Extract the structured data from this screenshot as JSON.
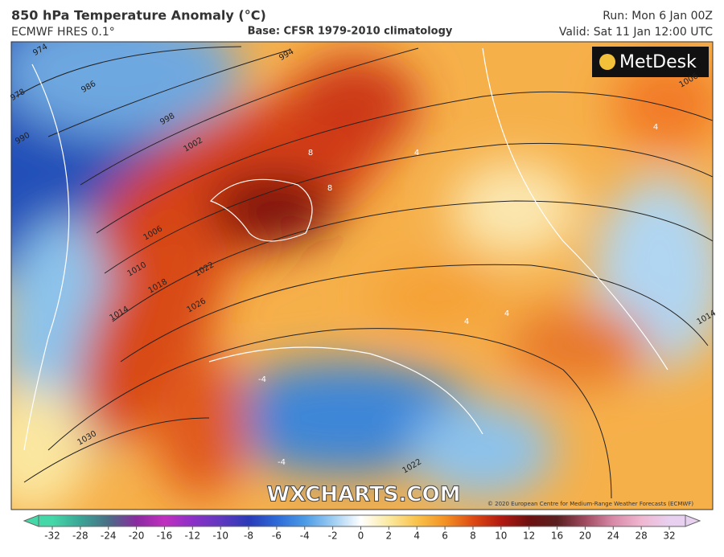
{
  "header": {
    "title": "850 hPa Temperature Anomaly (°C)",
    "model": "ECMWF HRES 0.1°",
    "base": "Base: CFSR 1979-2010 climatology",
    "run": "Run: Mon 6 Jan 00Z",
    "valid": "Valid: Sat 11 Jan 12:00 UTC"
  },
  "logo": "MetDesk",
  "watermark": "WXCHARTS.COM",
  "copyright": "© 2020 European Centre for Medium-Range Weather Forecasts (ECMWF)",
  "map": {
    "isobar_labels": [
      "974",
      "978",
      "986",
      "990",
      "994",
      "998",
      "1002",
      "1006",
      "1010",
      "1014",
      "1018",
      "1022",
      "1026",
      "1030",
      "1006",
      "1014",
      "1022"
    ],
    "anomaly_labels": [
      "8",
      "8",
      "4",
      "-4",
      "4",
      "4",
      "-4",
      "4"
    ]
  },
  "colorbar": {
    "ticks": [
      -32,
      -28,
      -24,
      -20,
      -16,
      -12,
      -10,
      -8,
      -6,
      -4,
      -2,
      0,
      2,
      4,
      6,
      8,
      10,
      12,
      16,
      20,
      24,
      28,
      32
    ],
    "colors": [
      "#44d8a8",
      "#3aa596",
      "#4a6e86",
      "#8a2aa0",
      "#c030c0",
      "#8c30c8",
      "#6038c0",
      "#2a3ab8",
      "#2d6ad8",
      "#4a9ae6",
      "#9dcdf2",
      "#ffffff",
      "#fbe9a0",
      "#f9c24a",
      "#f39224",
      "#de4a14",
      "#b21a10",
      "#6e1010",
      "#5a2020",
      "#a04a60",
      "#d88aa8",
      "#f0b6d0",
      "#e8d0f0"
    ]
  }
}
